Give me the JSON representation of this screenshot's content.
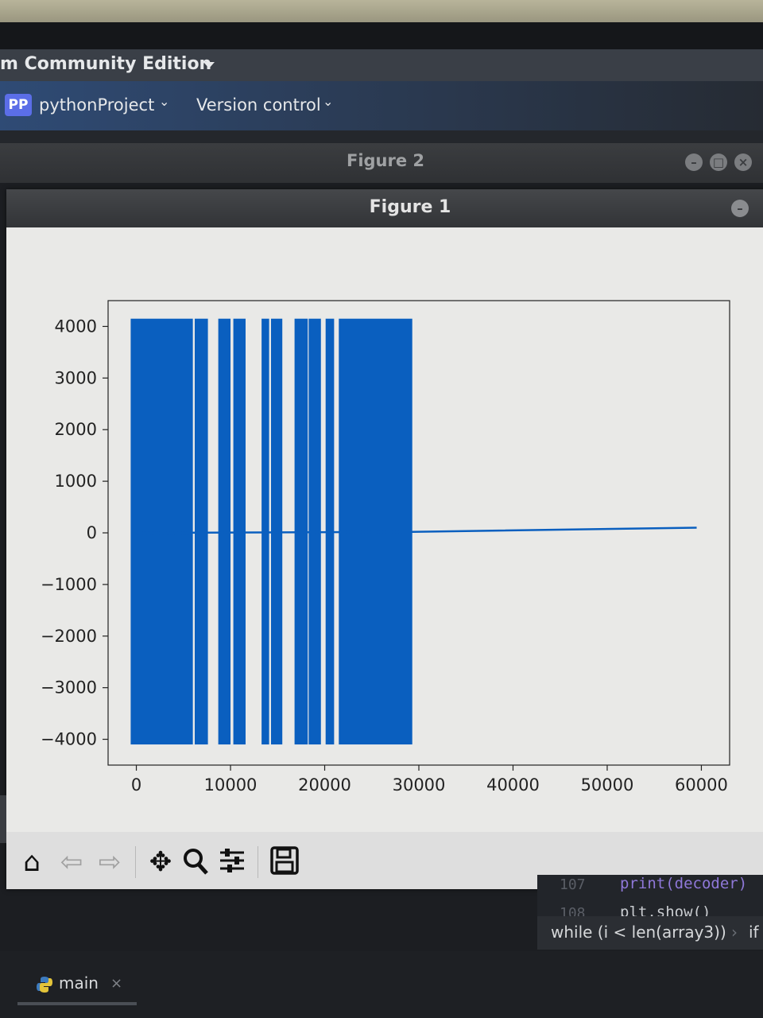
{
  "ide": {
    "title": "m Community Edition",
    "project_badge": "PP",
    "project_name": "pythonProject",
    "version_control": "Version control"
  },
  "windows": {
    "figure2_title": "Figure 2",
    "figure1_title": "Figure 1"
  },
  "chart_data": {
    "type": "line",
    "title": "",
    "xlabel": "",
    "ylabel": "",
    "xlim": [
      -3000,
      63000
    ],
    "ylim": [
      -4500,
      4500
    ],
    "xticks": [
      0,
      10000,
      20000,
      30000,
      40000,
      50000,
      60000
    ],
    "yticks": [
      -4000,
      -3000,
      -2000,
      -1000,
      0,
      1000,
      2000,
      3000,
      4000
    ],
    "grid": false,
    "color": "#0a5fbf",
    "series": [
      {
        "dense_blocks": [
          [
            -600,
            6000
          ],
          [
            6200,
            7600
          ],
          [
            8700,
            10000
          ],
          [
            10300,
            11600
          ],
          [
            13300,
            14100
          ],
          [
            14300,
            15500
          ],
          [
            16800,
            18200
          ],
          [
            18300,
            19600
          ],
          [
            20100,
            21000
          ],
          [
            21500,
            29300
          ]
        ],
        "amplitude_range": [
          -4100,
          4150
        ],
        "baseline": [
          [
            0,
            0
          ],
          [
            29300,
            20
          ],
          [
            59500,
            100
          ]
        ]
      }
    ]
  },
  "toolbar": {
    "home": "home-icon",
    "back": "back-arrow-icon",
    "forward": "forward-arrow-icon",
    "pan": "pan-icon",
    "zoom": "zoom-icon",
    "configure": "configure-subplots-icon",
    "save": "save-icon"
  },
  "editor": {
    "lines": [
      {
        "num": "107",
        "code": "print(decoder)"
      },
      {
        "num": "108",
        "code": "plt.show()"
      }
    ],
    "breadcrumb": [
      "while (i < len(array3))",
      "if"
    ]
  },
  "run_tab": {
    "label": "main",
    "close": "×"
  }
}
